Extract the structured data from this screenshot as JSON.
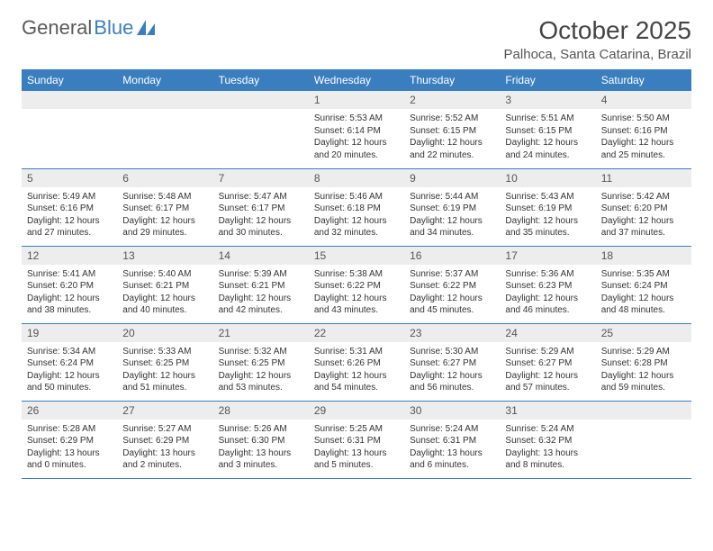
{
  "logo": {
    "text1": "General",
    "text2": "Blue"
  },
  "title": "October 2025",
  "location": "Palhoca, Santa Catarina, Brazil",
  "colors": {
    "header_bg": "#3a7ebf",
    "header_text": "#ffffff",
    "daynum_bg": "#ededed",
    "border": "#3a7ebf",
    "body_text": "#333333",
    "logo_gray": "#5a5a5a",
    "logo_blue": "#3a7ebf"
  },
  "weekdays": [
    "Sunday",
    "Monday",
    "Tuesday",
    "Wednesday",
    "Thursday",
    "Friday",
    "Saturday"
  ],
  "layout": {
    "first_weekday_index": 3,
    "days_in_month": 31
  },
  "days": {
    "1": {
      "sunrise": "5:53 AM",
      "sunset": "6:14 PM",
      "daylight": "12 hours and 20 minutes."
    },
    "2": {
      "sunrise": "5:52 AM",
      "sunset": "6:15 PM",
      "daylight": "12 hours and 22 minutes."
    },
    "3": {
      "sunrise": "5:51 AM",
      "sunset": "6:15 PM",
      "daylight": "12 hours and 24 minutes."
    },
    "4": {
      "sunrise": "5:50 AM",
      "sunset": "6:16 PM",
      "daylight": "12 hours and 25 minutes."
    },
    "5": {
      "sunrise": "5:49 AM",
      "sunset": "6:16 PM",
      "daylight": "12 hours and 27 minutes."
    },
    "6": {
      "sunrise": "5:48 AM",
      "sunset": "6:17 PM",
      "daylight": "12 hours and 29 minutes."
    },
    "7": {
      "sunrise": "5:47 AM",
      "sunset": "6:17 PM",
      "daylight": "12 hours and 30 minutes."
    },
    "8": {
      "sunrise": "5:46 AM",
      "sunset": "6:18 PM",
      "daylight": "12 hours and 32 minutes."
    },
    "9": {
      "sunrise": "5:44 AM",
      "sunset": "6:19 PM",
      "daylight": "12 hours and 34 minutes."
    },
    "10": {
      "sunrise": "5:43 AM",
      "sunset": "6:19 PM",
      "daylight": "12 hours and 35 minutes."
    },
    "11": {
      "sunrise": "5:42 AM",
      "sunset": "6:20 PM",
      "daylight": "12 hours and 37 minutes."
    },
    "12": {
      "sunrise": "5:41 AM",
      "sunset": "6:20 PM",
      "daylight": "12 hours and 38 minutes."
    },
    "13": {
      "sunrise": "5:40 AM",
      "sunset": "6:21 PM",
      "daylight": "12 hours and 40 minutes."
    },
    "14": {
      "sunrise": "5:39 AM",
      "sunset": "6:21 PM",
      "daylight": "12 hours and 42 minutes."
    },
    "15": {
      "sunrise": "5:38 AM",
      "sunset": "6:22 PM",
      "daylight": "12 hours and 43 minutes."
    },
    "16": {
      "sunrise": "5:37 AM",
      "sunset": "6:22 PM",
      "daylight": "12 hours and 45 minutes."
    },
    "17": {
      "sunrise": "5:36 AM",
      "sunset": "6:23 PM",
      "daylight": "12 hours and 46 minutes."
    },
    "18": {
      "sunrise": "5:35 AM",
      "sunset": "6:24 PM",
      "daylight": "12 hours and 48 minutes."
    },
    "19": {
      "sunrise": "5:34 AM",
      "sunset": "6:24 PM",
      "daylight": "12 hours and 50 minutes."
    },
    "20": {
      "sunrise": "5:33 AM",
      "sunset": "6:25 PM",
      "daylight": "12 hours and 51 minutes."
    },
    "21": {
      "sunrise": "5:32 AM",
      "sunset": "6:25 PM",
      "daylight": "12 hours and 53 minutes."
    },
    "22": {
      "sunrise": "5:31 AM",
      "sunset": "6:26 PM",
      "daylight": "12 hours and 54 minutes."
    },
    "23": {
      "sunrise": "5:30 AM",
      "sunset": "6:27 PM",
      "daylight": "12 hours and 56 minutes."
    },
    "24": {
      "sunrise": "5:29 AM",
      "sunset": "6:27 PM",
      "daylight": "12 hours and 57 minutes."
    },
    "25": {
      "sunrise": "5:29 AM",
      "sunset": "6:28 PM",
      "daylight": "12 hours and 59 minutes."
    },
    "26": {
      "sunrise": "5:28 AM",
      "sunset": "6:29 PM",
      "daylight": "13 hours and 0 minutes."
    },
    "27": {
      "sunrise": "5:27 AM",
      "sunset": "6:29 PM",
      "daylight": "13 hours and 2 minutes."
    },
    "28": {
      "sunrise": "5:26 AM",
      "sunset": "6:30 PM",
      "daylight": "13 hours and 3 minutes."
    },
    "29": {
      "sunrise": "5:25 AM",
      "sunset": "6:31 PM",
      "daylight": "13 hours and 5 minutes."
    },
    "30": {
      "sunrise": "5:24 AM",
      "sunset": "6:31 PM",
      "daylight": "13 hours and 6 minutes."
    },
    "31": {
      "sunrise": "5:24 AM",
      "sunset": "6:32 PM",
      "daylight": "13 hours and 8 minutes."
    }
  },
  "labels": {
    "sunrise": "Sunrise:",
    "sunset": "Sunset:",
    "daylight": "Daylight:"
  }
}
